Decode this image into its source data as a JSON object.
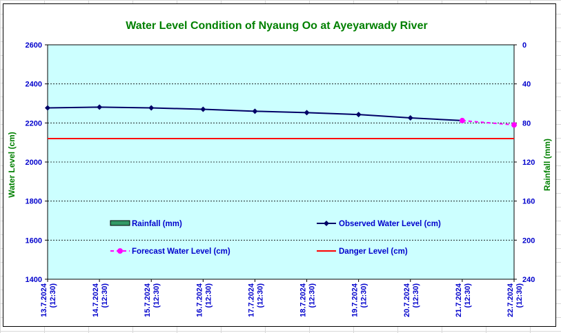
{
  "chart_data": {
    "type": "line",
    "title": "Water Level Condition of Nyaung Oo at Ayeyarwady River",
    "ylabel_left": "Water Level (cm)",
    "ylabel_right": "Rainfall (mm)",
    "ylim_left": [
      1400,
      2600
    ],
    "yticks_left": [
      "1400",
      "1600",
      "1800",
      "2000",
      "2200",
      "2400",
      "2600"
    ],
    "ylim_right": [
      0,
      240
    ],
    "right_axis_reversed": true,
    "yticks_right": [
      "0",
      "40",
      "80",
      "120",
      "160",
      "200",
      "240"
    ],
    "grid": true,
    "categories": [
      [
        "13.7.2024",
        "(12:30)"
      ],
      [
        "14.7.2024",
        "(12:30)"
      ],
      [
        "15.7.2024",
        "(12:30)"
      ],
      [
        "16.7.2024",
        "(12:30)"
      ],
      [
        "17.7.2024",
        "(12:30)"
      ],
      [
        "18.7.2024",
        "(12:30)"
      ],
      [
        "19.7.2024",
        "(12:30)"
      ],
      [
        "20.7.2024",
        "(12:30)"
      ],
      [
        "21.7.2024",
        "(12:30)"
      ],
      [
        "22.7.2024",
        "(12:30)"
      ]
    ],
    "series": [
      {
        "name": "Observed Water Level (cm)",
        "color": "#000066",
        "marker": "diamond",
        "values": [
          2277,
          2281,
          2277,
          2270,
          2260,
          2253,
          2243,
          2226,
          2212,
          null
        ]
      },
      {
        "name": "Forecast Water Level (cm)",
        "color": "#ff00ff",
        "marker": "circle",
        "dashed": true,
        "values": [
          null,
          null,
          null,
          null,
          null,
          null,
          null,
          null,
          2212,
          2190
        ]
      },
      {
        "name": "Danger Level (cm)",
        "color": "#ff0000",
        "marker": "none",
        "values": [
          2120,
          2120,
          2120,
          2120,
          2120,
          2120,
          2120,
          2120,
          2120,
          2120
        ]
      }
    ],
    "rainfall_legend": "Rainfall (mm)",
    "legend": [
      {
        "label": "Rainfall (mm)",
        "kind": "bar",
        "color": "#339966"
      },
      {
        "label": "Observed Water Level (cm)",
        "kind": "line-diamond",
        "color": "#000066"
      },
      {
        "label": "Forecast Water Level (cm)",
        "kind": "dashed-circle",
        "color": "#ff00ff"
      },
      {
        "label": "Danger Level (cm)",
        "kind": "line",
        "color": "#ff0000"
      }
    ],
    "colors": {
      "plot_background": "#ccffff",
      "title": "#008000",
      "axis_title": "#008000",
      "tick_labels": "#0000cc"
    }
  }
}
